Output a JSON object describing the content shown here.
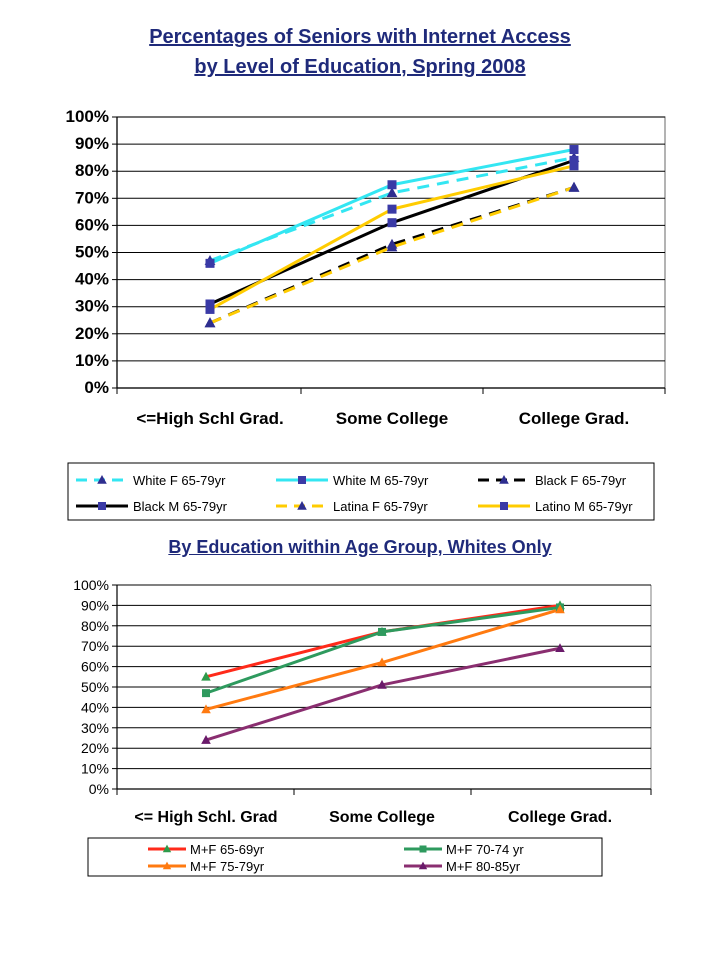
{
  "titles": {
    "chart1_line1": "Percentages of Seniors with Internet Access",
    "chart1_line2": "by Level of Education, Spring 2008",
    "chart2": "By Education within Age Group, Whites Only"
  },
  "chart_data": [
    {
      "type": "line",
      "title": "Percentages of Seniors with Internet Access by Level of Education, Spring 2008",
      "categories": [
        "<=High Schl Grad.",
        "Some College",
        "College Grad."
      ],
      "ylim": [
        0,
        100
      ],
      "yticks": [
        "0%",
        "10%",
        "20%",
        "30%",
        "40%",
        "50%",
        "60%",
        "70%",
        "80%",
        "90%",
        "100%"
      ],
      "grid": true,
      "legend_position": "bottom",
      "series": [
        {
          "name": "White F 65-79yr",
          "values": [
            47,
            72,
            85
          ],
          "color": "#33e6f2",
          "dash": true,
          "marker": "triangle",
          "marker_color": "#2e2e8f"
        },
        {
          "name": "White M 65-79yr",
          "values": [
            46,
            75,
            88
          ],
          "color": "#33e6f2",
          "dash": false,
          "marker": "square",
          "marker_color": "#3a3aa6"
        },
        {
          "name": "Black F 65-79yr",
          "values": [
            24,
            53,
            74
          ],
          "color": "#000000",
          "dash": true,
          "marker": "triangle",
          "marker_color": "#2e2e8f"
        },
        {
          "name": "Black M 65-79yr",
          "values": [
            31,
            61,
            84
          ],
          "color": "#000000",
          "dash": false,
          "marker": "square",
          "marker_color": "#3a3aa6"
        },
        {
          "name": "Latina F 65-79yr",
          "values": [
            24,
            52,
            74
          ],
          "color": "#ffcc00",
          "dash": true,
          "marker": "triangle",
          "marker_color": "#2e2e8f"
        },
        {
          "name": "Latino M 65-79yr",
          "values": [
            29,
            66,
            82
          ],
          "color": "#ffcc00",
          "dash": false,
          "marker": "square",
          "marker_color": "#3a3aa6"
        }
      ]
    },
    {
      "type": "line",
      "title": "By Education within Age Group, Whites Only",
      "categories": [
        "<= High Schl. Grad",
        "Some College",
        "College Grad."
      ],
      "ylim": [
        0,
        100
      ],
      "yticks": [
        "0%",
        "10%",
        "20%",
        "30%",
        "40%",
        "50%",
        "60%",
        "70%",
        "80%",
        "90%",
        "100%"
      ],
      "grid": true,
      "legend_position": "bottom",
      "series": [
        {
          "name": "M+F 65-69yr",
          "values": [
            55,
            77,
            90
          ],
          "color": "#ff2a1a",
          "marker": "triangle",
          "marker_color": "#2e9a4a"
        },
        {
          "name": "M+F 70-74 yr",
          "values": [
            47,
            77,
            89
          ],
          "color": "#2e9a5e",
          "marker": "square",
          "marker_color": "#2e9a5e"
        },
        {
          "name": "M+F 75-79yr",
          "values": [
            39,
            62,
            88
          ],
          "color": "#ff7a10",
          "marker": "triangle",
          "marker_color": "#ff7a10"
        },
        {
          "name": "M+F 80-85yr",
          "values": [
            24,
            51,
            69
          ],
          "color": "#8a2e70",
          "marker": "triangle",
          "marker_color": "#6a1a6a"
        }
      ]
    }
  ]
}
